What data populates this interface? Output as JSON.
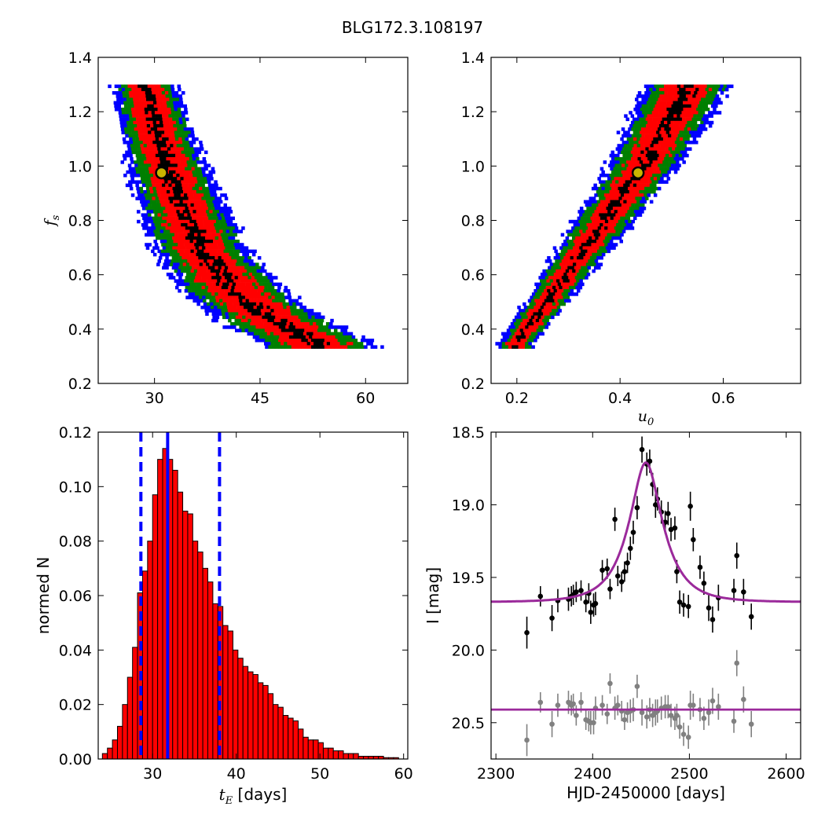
{
  "title": "BLG172.3.108197",
  "colors": {
    "contour_black": "#000000",
    "contour_red": "#ff0000",
    "contour_green": "#007f00",
    "contour_blue": "#0000ff",
    "hist_fill": "#ff0000",
    "hist_edge": "#000000",
    "line_blue": "#0000ff",
    "model_curve": "#9b2a9b",
    "data_black": "#000000",
    "data_gray": "#808080",
    "best_marker_fill": "#c9b400"
  },
  "chart_data": [
    {
      "panel": "top-left",
      "type": "heatmap",
      "xlabel": "",
      "ylabel": "f_s",
      "ylabel_main": "f",
      "ylabel_sub": "s",
      "xlim": [
        22,
        66
      ],
      "ylim": [
        0.2,
        1.4
      ],
      "xticks": [
        "30",
        "45",
        "60"
      ],
      "yticks": [
        "0.2",
        "0.4",
        "0.6",
        "0.8",
        "1.0",
        "1.2",
        "1.4"
      ],
      "levels": [
        "black",
        "red",
        "green",
        "blue"
      ],
      "ridge": [
        {
          "f": 1.3,
          "x": 28.5
        },
        {
          "f": 1.1,
          "x": 30.5
        },
        {
          "f": 0.9,
          "x": 33.0
        },
        {
          "f": 0.7,
          "x": 36.5
        },
        {
          "f": 0.55,
          "x": 41.0
        },
        {
          "f": 0.45,
          "x": 46.0
        },
        {
          "f": 0.35,
          "x": 53.0
        }
      ],
      "best_fit": {
        "x": 31.0,
        "y": 0.975
      }
    },
    {
      "panel": "top-right",
      "type": "heatmap",
      "xlabel": "u_0",
      "xlabel_main": "u",
      "xlabel_sub": "0",
      "ylabel": "",
      "xlim": [
        0.15,
        0.75
      ],
      "ylim": [
        0.2,
        1.4
      ],
      "xticks": [
        "0.2",
        "0.4",
        "0.6"
      ],
      "yticks": [
        "0.2",
        "0.4",
        "0.6",
        "0.8",
        "1.0",
        "1.2",
        "1.4"
      ],
      "levels": [
        "black",
        "red",
        "green",
        "blue"
      ],
      "ridge": [
        {
          "f": 0.35,
          "x": 0.195
        },
        {
          "f": 0.6,
          "x": 0.29
        },
        {
          "f": 0.8,
          "x": 0.365
        },
        {
          "f": 1.0,
          "x": 0.44
        },
        {
          "f": 1.2,
          "x": 0.5
        },
        {
          "f": 1.3,
          "x": 0.53
        }
      ],
      "best_fit": {
        "x": 0.435,
        "y": 0.975
      }
    },
    {
      "panel": "bottom-left",
      "type": "bar",
      "xlabel": "t_E  [days]",
      "xlabel_main": "t",
      "xlabel_sub": "E",
      "xlabel_rest": " [days]",
      "ylabel": "normed N",
      "xlim": [
        23.5,
        60.5
      ],
      "ylim": [
        0.0,
        0.12
      ],
      "xticks": [
        "30",
        "40",
        "50",
        "60"
      ],
      "yticks": [
        "0.00",
        "0.02",
        "0.04",
        "0.06",
        "0.08",
        "0.10",
        "0.12"
      ],
      "bin_start": 24.0,
      "bin_width": 0.6,
      "values": [
        0.002,
        0.004,
        0.007,
        0.012,
        0.02,
        0.03,
        0.041,
        0.061,
        0.069,
        0.08,
        0.097,
        0.11,
        0.114,
        0.11,
        0.106,
        0.098,
        0.091,
        0.09,
        0.08,
        0.076,
        0.07,
        0.065,
        0.057,
        0.056,
        0.049,
        0.047,
        0.04,
        0.037,
        0.034,
        0.032,
        0.031,
        0.028,
        0.027,
        0.024,
        0.02,
        0.019,
        0.016,
        0.015,
        0.014,
        0.011,
        0.008,
        0.007,
        0.007,
        0.006,
        0.004,
        0.004,
        0.003,
        0.003,
        0.002,
        0.002,
        0.002,
        0.001,
        0.001,
        0.001,
        0.001,
        0.001,
        0.0005,
        0.0005,
        0.0005
      ],
      "median": 31.8,
      "lower": 28.6,
      "upper": 38.0
    },
    {
      "panel": "bottom-right",
      "type": "scatter",
      "xlabel": "HJD-2450000 [days]",
      "ylabel": "I [mag]",
      "xlim": [
        2295,
        2615
      ],
      "ylim": [
        20.75,
        18.5
      ],
      "xticks": [
        "2300",
        "2400",
        "2500",
        "2600"
      ],
      "yticks": [
        "18.5",
        "19.0",
        "19.5",
        "20.0",
        "20.5"
      ],
      "model": {
        "t0": 2455,
        "tE": 31.8,
        "u0": 0.435,
        "fs": 0.975,
        "baseline": 19.67
      },
      "residual_baseline": 20.41,
      "series": [
        {
          "name": "",
          "color": "black",
          "x": [
            2332,
            2346,
            2358,
            2364,
            2375,
            2378,
            2380,
            2383,
            2388,
            2393,
            2396,
            2398,
            2401,
            2403,
            2410,
            2415,
            2418,
            2423,
            2426,
            2430,
            2433,
            2436,
            2439,
            2442,
            2446,
            2451,
            2456,
            2459,
            2462,
            2465,
            2467,
            2471,
            2475,
            2478,
            2481,
            2485,
            2487,
            2490,
            2494,
            2499,
            2501,
            2504,
            2511,
            2515,
            2520,
            2524,
            2530,
            2546,
            2549,
            2556,
            2564
          ],
          "y": [
            19.88,
            19.63,
            19.78,
            19.66,
            19.65,
            19.63,
            19.62,
            19.6,
            19.59,
            19.67,
            19.61,
            19.74,
            19.69,
            19.68,
            19.45,
            19.44,
            19.58,
            19.1,
            19.49,
            19.53,
            19.46,
            19.4,
            19.3,
            19.19,
            19.02,
            18.62,
            18.72,
            18.7,
            18.86,
            19.0,
            18.96,
            19.05,
            19.12,
            19.06,
            19.17,
            19.16,
            19.46,
            19.67,
            19.69,
            19.7,
            19.01,
            19.24,
            19.43,
            19.54,
            19.71,
            19.79,
            19.64,
            19.59,
            19.35,
            19.6,
            19.77
          ],
          "err": [
            0.11,
            0.07,
            0.09,
            0.08,
            0.08,
            0.07,
            0.07,
            0.07,
            0.07,
            0.07,
            0.07,
            0.08,
            0.08,
            0.08,
            0.07,
            0.07,
            0.07,
            0.08,
            0.07,
            0.07,
            0.07,
            0.07,
            0.08,
            0.08,
            0.08,
            0.09,
            0.08,
            0.08,
            0.08,
            0.09,
            0.08,
            0.08,
            0.08,
            0.08,
            0.08,
            0.08,
            0.08,
            0.08,
            0.08,
            0.08,
            0.1,
            0.08,
            0.08,
            0.08,
            0.09,
            0.09,
            0.09,
            0.08,
            0.09,
            0.09,
            0.09
          ]
        },
        {
          "name": "",
          "color": "gray",
          "x": [
            2332,
            2346,
            2358,
            2364,
            2375,
            2378,
            2380,
            2383,
            2388,
            2393,
            2396,
            2398,
            2401,
            2403,
            2410,
            2415,
            2418,
            2423,
            2426,
            2430,
            2433,
            2436,
            2439,
            2442,
            2446,
            2451,
            2456,
            2459,
            2462,
            2465,
            2467,
            2471,
            2475,
            2478,
            2481,
            2485,
            2487,
            2490,
            2494,
            2499,
            2501,
            2504,
            2511,
            2515,
            2520,
            2524,
            2530,
            2546,
            2549,
            2556,
            2564
          ],
          "y": [
            20.62,
            20.36,
            20.51,
            20.38,
            20.36,
            20.38,
            20.37,
            20.45,
            20.36,
            20.48,
            20.49,
            20.5,
            20.5,
            20.4,
            20.38,
            20.44,
            20.23,
            20.4,
            20.38,
            20.42,
            20.48,
            20.43,
            20.42,
            20.41,
            20.25,
            20.43,
            20.46,
            20.41,
            20.45,
            20.43,
            20.42,
            20.4,
            20.39,
            20.39,
            20.45,
            20.47,
            20.45,
            20.53,
            20.58,
            20.6,
            20.38,
            20.38,
            20.41,
            20.47,
            20.43,
            20.35,
            20.39,
            20.49,
            20.09,
            20.34,
            20.51
          ],
          "err": [
            0.11,
            0.07,
            0.09,
            0.08,
            0.08,
            0.07,
            0.07,
            0.07,
            0.07,
            0.07,
            0.07,
            0.08,
            0.08,
            0.08,
            0.07,
            0.07,
            0.07,
            0.08,
            0.07,
            0.07,
            0.07,
            0.07,
            0.08,
            0.08,
            0.08,
            0.09,
            0.08,
            0.08,
            0.08,
            0.09,
            0.08,
            0.08,
            0.08,
            0.08,
            0.08,
            0.08,
            0.08,
            0.08,
            0.08,
            0.08,
            0.1,
            0.08,
            0.08,
            0.08,
            0.09,
            0.09,
            0.09,
            0.08,
            0.09,
            0.09,
            0.09
          ]
        }
      ]
    }
  ]
}
